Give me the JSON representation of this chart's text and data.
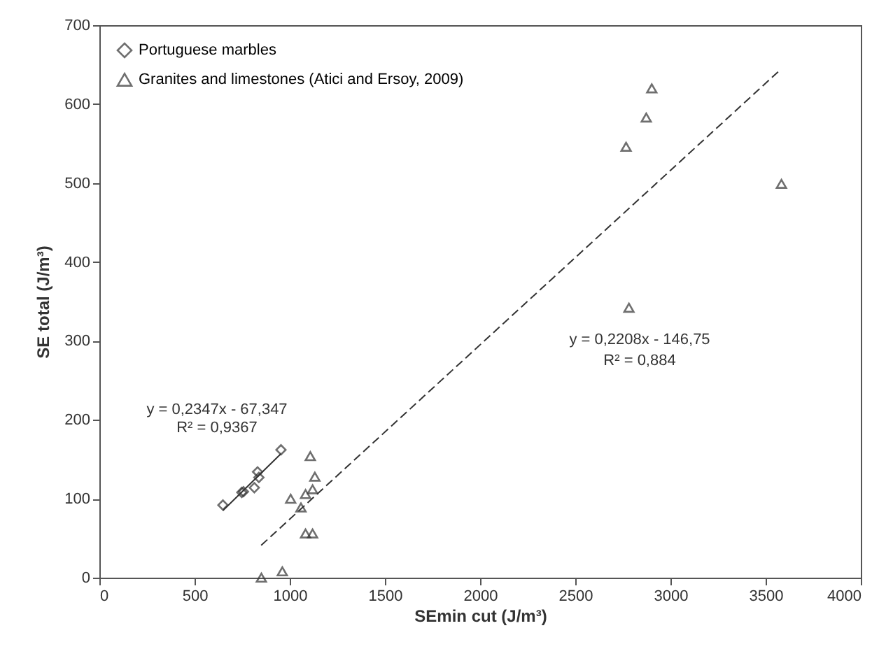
{
  "chart_data": {
    "type": "scatter",
    "xlabel": "SEmin cut (J/m³)",
    "ylabel": "SE total (J/m³)",
    "xlim": [
      0,
      4000
    ],
    "xticks": [
      0,
      500,
      1000,
      1500,
      2000,
      2500,
      3000,
      3500,
      4000
    ],
    "ylim": [
      0,
      700
    ],
    "yticks": [
      0,
      100,
      200,
      300,
      400,
      500,
      600,
      700
    ],
    "grid": false,
    "legend": "top left",
    "series": [
      {
        "name": "Portuguese marbles",
        "color": "#333333",
        "marker": "diamond",
        "x": [
          649,
          748,
          757,
          814,
          831,
          838,
          954
        ],
        "values": [
          92,
          108,
          109,
          114,
          134,
          127,
          162
        ]
      },
      {
        "name": "Granites and limestones (Atici and Ersoy, 2009)",
        "color": "#333333",
        "marker": "triangle",
        "x": [
          851,
          961,
          1005,
          1059,
          1083,
          1108,
          1120,
          1132,
          1083,
          1120,
          2902,
          2873,
          2767,
          3583,
          2782
        ],
        "values": [
          0,
          8,
          100,
          89,
          106,
          154,
          112,
          128,
          56,
          56,
          620,
          583,
          546,
          499,
          342
        ]
      },
      {
        "type": "line",
        "color": "#333333",
        "line_style": "solid",
        "x": [
          649,
          954
        ],
        "values": [
          85,
          157
        ]
      },
      {
        "type": "line",
        "color": "#333333",
        "line_style": "dashed",
        "x": [
          850,
          3575
        ],
        "values": [
          41,
          643
        ]
      }
    ],
    "annotations": [
      "y = 0,2347x - 67,347",
      "R² = 0,9367",
      "y = 0,2208x - 146,75",
      "R² = 0,884"
    ]
  }
}
